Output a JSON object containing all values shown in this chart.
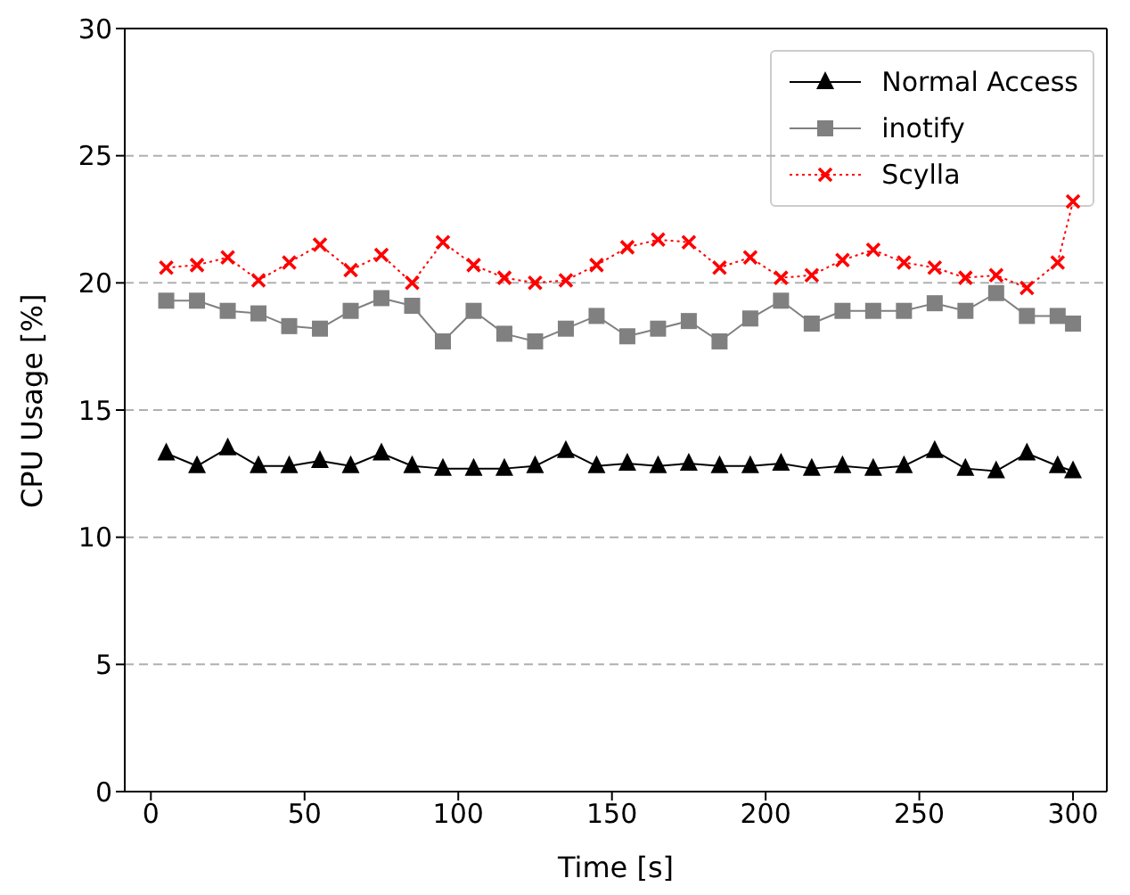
{
  "chart_data": {
    "type": "line",
    "xlabel": "Time [s]",
    "ylabel": "CPU Usage [%]",
    "x": [
      5,
      15,
      25,
      35,
      45,
      55,
      65,
      75,
      85,
      95,
      105,
      115,
      125,
      135,
      145,
      155,
      165,
      175,
      185,
      195,
      205,
      215,
      225,
      235,
      245,
      255,
      265,
      275,
      285,
      295,
      300
    ],
    "series": [
      {
        "name": "Normal Access",
        "color": "#000000",
        "marker": "triangle",
        "line_style": "solid",
        "values": [
          13.3,
          12.8,
          13.5,
          12.8,
          12.8,
          13.0,
          12.8,
          13.3,
          12.8,
          12.7,
          12.7,
          12.7,
          12.8,
          13.4,
          12.8,
          12.9,
          12.8,
          12.9,
          12.8,
          12.8,
          12.9,
          12.7,
          12.8,
          12.7,
          12.8,
          13.4,
          12.7,
          12.6,
          13.3,
          12.8,
          12.6
        ]
      },
      {
        "name": "inotify",
        "color": "#808080",
        "marker": "square",
        "line_style": "solid",
        "values": [
          19.3,
          19.3,
          18.9,
          18.8,
          18.3,
          18.2,
          18.9,
          19.4,
          19.1,
          17.7,
          18.9,
          18.0,
          17.7,
          18.2,
          18.7,
          17.9,
          18.2,
          18.5,
          17.7,
          18.6,
          19.3,
          18.4,
          18.9,
          18.9,
          18.9,
          19.2,
          18.9,
          19.6,
          18.7,
          18.7,
          18.4
        ]
      },
      {
        "name": "Scylla",
        "color": "#ff0000",
        "marker": "cross",
        "line_style": "dotted",
        "values": [
          20.6,
          20.7,
          21.0,
          20.1,
          20.8,
          21.5,
          20.5,
          21.1,
          20.0,
          21.6,
          20.7,
          20.2,
          20.0,
          20.1,
          20.7,
          21.4,
          21.7,
          21.6,
          20.6,
          21.0,
          20.2,
          20.3,
          20.9,
          21.3,
          20.8,
          20.6,
          20.2,
          20.3,
          19.8,
          20.8,
          23.2
        ]
      }
    ],
    "xlim": [
      -8.5,
      311
    ],
    "xticks": [
      0,
      50,
      100,
      150,
      200,
      250,
      300
    ],
    "ylim": [
      0,
      30
    ],
    "yticks": [
      0,
      5,
      10,
      15,
      20,
      25,
      30
    ],
    "grid": "y",
    "legend": "top right"
  }
}
